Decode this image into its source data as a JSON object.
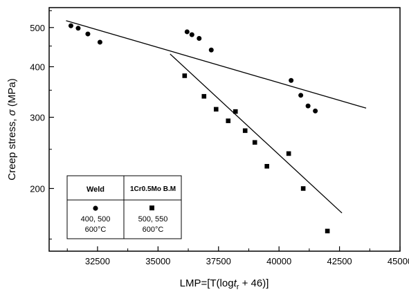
{
  "chart_data": {
    "type": "scatter",
    "xlabel": "LMP=[T(log",
    "xlabel_var": "t",
    "xlabel_sub": "r",
    "xlabel_tail": " + 46)]",
    "ylabel": "Creep stress, ",
    "ylabel_sym": "σ",
    "ylabel_unit": " (MPa)",
    "y_scale": "log",
    "xlim": [
      30500,
      45000
    ],
    "ylim": [
      140,
      560
    ],
    "x_ticks": [
      32500,
      35000,
      37500,
      40000,
      42500,
      45000
    ],
    "x_tick_labels": [
      "32500",
      "35000",
      "37500",
      "40000",
      "42500",
      "45000"
    ],
    "y_ticks": [
      200,
      300,
      400,
      500
    ],
    "y_tick_labels": [
      "200",
      "300",
      "400",
      "500"
    ],
    "grid": false,
    "series": [
      {
        "name": "Weld",
        "marker": "circle",
        "points": [
          [
            31400,
            505
          ],
          [
            31700,
            498
          ],
          [
            32100,
            482
          ],
          [
            32600,
            460
          ],
          [
            36200,
            488
          ],
          [
            36400,
            480
          ],
          [
            36700,
            470
          ],
          [
            37200,
            440
          ],
          [
            40500,
            370
          ],
          [
            40900,
            340
          ],
          [
            41200,
            320
          ],
          [
            41500,
            311
          ]
        ],
        "fit": [
          [
            31200,
            520
          ],
          [
            43600,
            316
          ]
        ]
      },
      {
        "name": "1Cr0.5Mo B.M",
        "marker": "square",
        "points": [
          [
            36100,
            380
          ],
          [
            36900,
            338
          ],
          [
            37400,
            314
          ],
          [
            37900,
            294
          ],
          [
            38200,
            310
          ],
          [
            38600,
            278
          ],
          [
            39000,
            260
          ],
          [
            39500,
            227
          ],
          [
            40400,
            244
          ],
          [
            41000,
            200
          ],
          [
            42000,
            157
          ]
        ],
        "fit": [
          [
            35500,
            430
          ],
          [
            42600,
            174
          ]
        ]
      }
    ],
    "legend": {
      "placement": "bottom-left",
      "entries": [
        {
          "label": "Weld",
          "marker": "circle",
          "temps_line1": "400, 500",
          "temps_line2": "600°C"
        },
        {
          "label": "1Cr0.5Mo B.M",
          "marker": "square",
          "temps_line1": "500, 550",
          "temps_line2": "600°C"
        }
      ]
    }
  }
}
